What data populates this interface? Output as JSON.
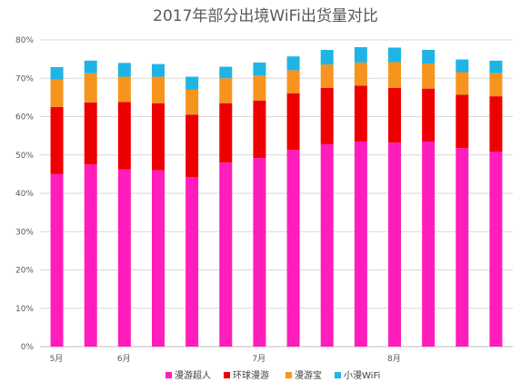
{
  "chart_data": {
    "type": "bar",
    "stacked": true,
    "title": "2017年部分出境WiFi出货量对比",
    "xlabel": "",
    "ylabel": "",
    "ylim": [
      0,
      80
    ],
    "yticks": [
      0,
      10,
      20,
      30,
      40,
      50,
      60,
      70,
      80
    ],
    "ytick_suffix": "%",
    "x_tick_labels": [
      {
        "index": 0,
        "label": "5月"
      },
      {
        "index": 2,
        "label": "6月"
      },
      {
        "index": 6,
        "label": "7月"
      },
      {
        "index": 10,
        "label": "8月"
      }
    ],
    "grid": true,
    "legend_position": "bottom",
    "bar_count": 14,
    "series": [
      {
        "name": "漫游超人",
        "color": "#ff1dbb",
        "values": [
          45.0,
          47.5,
          46.2,
          46.0,
          44.2,
          48.0,
          49.2,
          51.3,
          52.8,
          53.5,
          53.2,
          53.5,
          51.8,
          50.8
        ]
      },
      {
        "name": "环球漫游",
        "color": "#ee0000",
        "values": [
          17.5,
          16.2,
          17.6,
          17.5,
          16.3,
          15.5,
          15.0,
          14.8,
          14.7,
          14.6,
          14.3,
          13.8,
          13.9,
          14.5
        ]
      },
      {
        "name": "漫游宝",
        "color": "#f7941d",
        "values": [
          7.2,
          7.6,
          6.6,
          6.9,
          6.5,
          6.5,
          6.5,
          6.0,
          6.1,
          6.0,
          6.7,
          6.5,
          5.9,
          6.0
        ]
      },
      {
        "name": "小漫WiFi",
        "color": "#1fb4e6",
        "values": [
          3.2,
          3.3,
          3.6,
          3.3,
          3.4,
          3.0,
          3.4,
          3.6,
          3.8,
          4.0,
          3.8,
          3.6,
          3.3,
          3.3
        ]
      }
    ]
  }
}
